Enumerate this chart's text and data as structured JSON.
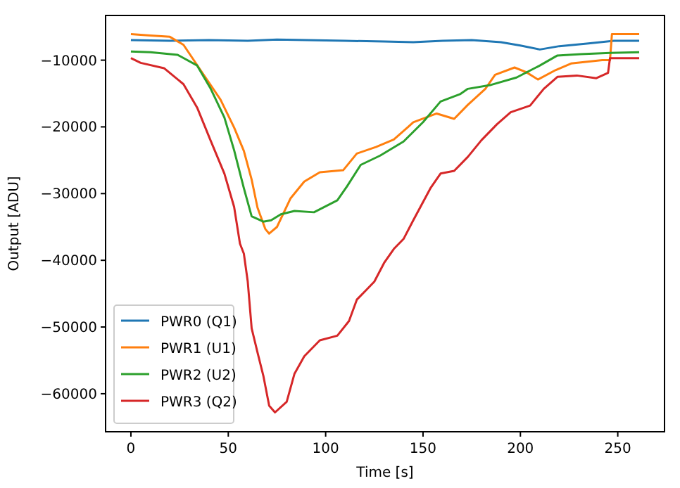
{
  "chart_data": {
    "type": "line",
    "xlabel": "Time [s]",
    "ylabel": "Output [ADU]",
    "xlim": [
      -13,
      274
    ],
    "ylim": [
      -65700,
      -3300
    ],
    "xticks": [
      0,
      50,
      100,
      150,
      200,
      250
    ],
    "yticks": [
      {
        "value": -10000,
        "label": "−10000"
      },
      {
        "value": -20000,
        "label": "−20000"
      },
      {
        "value": -30000,
        "label": "−30000"
      },
      {
        "value": -40000,
        "label": "−40000"
      },
      {
        "value": -50000,
        "label": "−50000"
      },
      {
        "value": -60000,
        "label": "−60000"
      }
    ],
    "legend": "bottom left",
    "grid": false,
    "series": [
      {
        "name": "PWR0 (Q1)",
        "color": "#1f77b4",
        "x": [
          0,
          20,
          40,
          60,
          75,
          90,
          110,
          130,
          145,
          160,
          175,
          190,
          200,
          210,
          220,
          235,
          248,
          261
        ],
        "values": [
          -7000,
          -7100,
          -7000,
          -7100,
          -6900,
          -7000,
          -7100,
          -7200,
          -7300,
          -7100,
          -7000,
          -7300,
          -7800,
          -8400,
          -7900,
          -7500,
          -7100,
          -7100
        ]
      },
      {
        "name": "PWR1 (U1)",
        "color": "#ff7f0e",
        "x": [
          0,
          10,
          20,
          27,
          36,
          46,
          53,
          58,
          62,
          65,
          69,
          71,
          75,
          82,
          89,
          97,
          109,
          116,
          126,
          135,
          142,
          145,
          157,
          166,
          173,
          182,
          187,
          197,
          203,
          209,
          218,
          226,
          242,
          246,
          247,
          261
        ],
        "values": [
          -6100,
          -6300,
          -6500,
          -7700,
          -11600,
          -15900,
          -20100,
          -23600,
          -27900,
          -32100,
          -35300,
          -36000,
          -35000,
          -30700,
          -28200,
          -26800,
          -26500,
          -24000,
          -23000,
          -21900,
          -20100,
          -19300,
          -18000,
          -18800,
          -16700,
          -14300,
          -12200,
          -11100,
          -11800,
          -12900,
          -11500,
          -10500,
          -10000,
          -10000,
          -6100,
          -6100
        ]
      },
      {
        "name": "PWR2 (U2)",
        "color": "#2ca02c",
        "x": [
          0,
          10,
          24,
          34,
          41,
          48,
          53,
          58,
          62,
          68,
          72,
          77,
          84,
          94,
          106,
          111,
          118,
          128,
          140,
          150,
          159,
          169,
          173,
          185,
          198,
          210,
          219,
          231,
          246,
          261
        ],
        "values": [
          -8700,
          -8800,
          -9200,
          -10800,
          -14300,
          -18600,
          -23500,
          -29200,
          -33400,
          -34200,
          -34000,
          -33100,
          -32600,
          -32800,
          -31000,
          -28900,
          -25700,
          -24300,
          -22200,
          -19300,
          -16200,
          -15100,
          -14300,
          -13700,
          -12600,
          -10800,
          -9300,
          -9100,
          -8900,
          -8800
        ]
      },
      {
        "name": "PWR3 (Q2)",
        "color": "#d62728",
        "x": [
          0,
          5,
          17,
          27,
          34,
          41,
          48,
          53,
          56,
          58,
          60,
          62,
          65,
          68,
          71,
          74,
          80,
          84,
          89,
          97,
          106,
          112,
          116,
          121,
          125,
          130,
          135,
          140,
          145,
          154,
          159,
          166,
          173,
          180,
          188,
          195,
          205,
          212,
          219,
          229,
          239,
          245,
          246,
          261
        ],
        "values": [
          -9700,
          -10400,
          -11200,
          -13600,
          -17100,
          -22100,
          -27000,
          -32000,
          -37500,
          -39000,
          -43200,
          -50200,
          -53800,
          -57300,
          -61800,
          -62800,
          -61200,
          -57000,
          -54400,
          -52000,
          -51300,
          -49100,
          -45900,
          -44400,
          -43200,
          -40400,
          -38300,
          -36800,
          -34000,
          -29100,
          -27000,
          -26600,
          -24500,
          -22000,
          -19600,
          -17800,
          -16800,
          -14300,
          -12500,
          -12300,
          -12700,
          -11900,
          -9700,
          -9700
        ]
      }
    ]
  }
}
